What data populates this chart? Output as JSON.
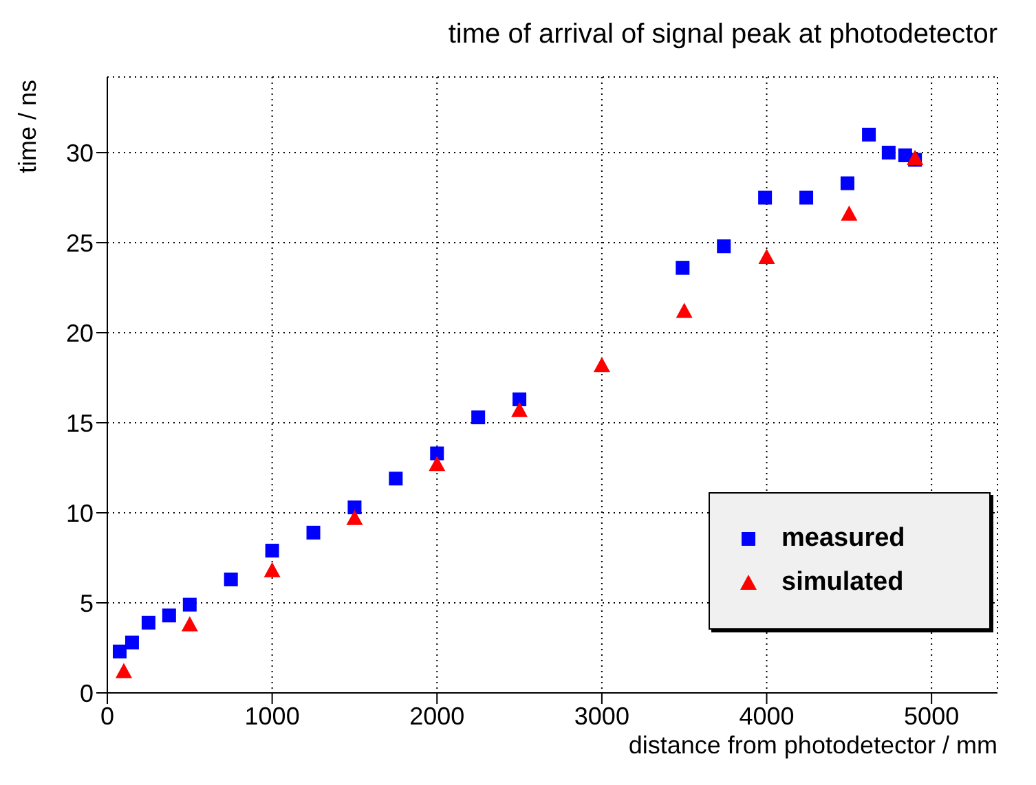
{
  "chart_data": {
    "type": "scatter",
    "title": "time of arrival of signal peak at photodetector",
    "xlabel": "distance from photodetector / mm",
    "ylabel": "time / ns",
    "xlim": [
      0,
      5400
    ],
    "xticks": [
      0,
      1000,
      2000,
      3000,
      4000,
      5000
    ],
    "ylim": [
      0,
      34.2
    ],
    "yticks": [
      0,
      5,
      10,
      15,
      20,
      25,
      30
    ],
    "grid": true,
    "legend": "bottom right",
    "series": [
      {
        "name": "measured",
        "color": "#0000ff",
        "marker": "square",
        "x": [
          75,
          150,
          250,
          375,
          500,
          750,
          1000,
          1250,
          1500,
          1750,
          2000,
          2250,
          2500,
          3490,
          3740,
          3990,
          4240,
          4490,
          4620,
          4740,
          4840,
          4900
        ],
        "values": [
          2.3,
          2.8,
          3.9,
          4.3,
          4.9,
          6.3,
          7.9,
          8.9,
          10.3,
          11.9,
          13.3,
          15.3,
          16.3,
          23.6,
          24.8,
          27.5,
          27.5,
          28.3,
          31.0,
          30.0,
          29.85,
          29.6
        ]
      },
      {
        "name": "simulated",
        "color": "#ff0000",
        "marker": "triangle",
        "x": [
          100,
          500,
          1000,
          1500,
          2000,
          2500,
          3000,
          3500,
          4000,
          4500,
          4900
        ],
        "values": [
          1.2,
          3.8,
          6.8,
          9.7,
          12.7,
          15.7,
          18.2,
          21.2,
          24.2,
          26.6,
          29.7
        ]
      }
    ]
  }
}
